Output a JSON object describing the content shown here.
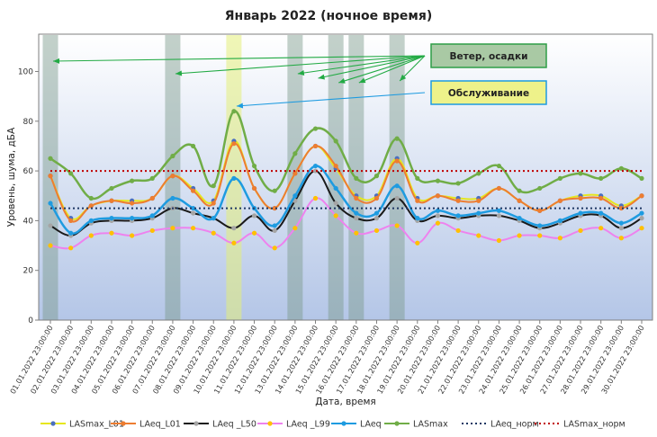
{
  "chart_data": {
    "type": "line",
    "title": "Январь 2022 (ночное время)",
    "xlabel": "Дата, время",
    "ylabel": "Уровень, шума, дБА",
    "ylim": [
      0,
      115
    ],
    "yticks": [
      0,
      20,
      40,
      60,
      80,
      100
    ],
    "grid": false,
    "legend_position": "bottom",
    "categories": [
      "01.01.2022 23:00:00",
      "02.01.2022 23:00:00",
      "03.01.2022 23:00:00",
      "04.01.2022 23:00:00",
      "05.01.2022 23:00:00",
      "06.01.2022 23:00:00",
      "07.01.2022 23:00:00",
      "08.01.2022 23:00:00",
      "09.01.2022 23:00:00",
      "10.01.2022 23:00:00",
      "11.01.2022 23:00:00",
      "12.01.2022 23:00:00",
      "13.01.2022 23:00:00",
      "14.01.2022 23:00:00",
      "15.01.2022 23:00:00",
      "16.01.2022 23:00:00",
      "17.01.2022 23:00:00",
      "18.01.2022 23:00:00",
      "19.01.2022 23:00:00",
      "20.01.2022 23:00:00",
      "21.01.2022 23:00:00",
      "22.01.2022 23:00:00",
      "23.01.2022 23:00:00",
      "24.01.2022 23:00:00",
      "25.01.2022 23:00:00",
      "26.01.2022 23:00:00",
      "27.01.2022 23:00:00",
      "28.01.2022 23:00:00",
      "29.01.2022 23:00:00",
      "30.01.2022 23:00:00"
    ],
    "series": [
      {
        "name": "LASmax_L01",
        "color": "#e6e61e",
        "marker": "#4a6fc0",
        "width": 2,
        "values": [
          58,
          41,
          46,
          48,
          48,
          49,
          58,
          53,
          48,
          72,
          53,
          45,
          59,
          70,
          61,
          50,
          50,
          65,
          49,
          50,
          49,
          49,
          53,
          48,
          44,
          48,
          50,
          50,
          46,
          50
        ]
      },
      {
        "name": "LAeq_L01",
        "color": "#ed7d31",
        "marker": "#ed7d31",
        "width": 2,
        "values": [
          58,
          40,
          46,
          48,
          47,
          49,
          58,
          52,
          47,
          71,
          53,
          45,
          59,
          70,
          62,
          49,
          49,
          64,
          48,
          50,
          48,
          48,
          53,
          48,
          44,
          48,
          49,
          49,
          45,
          50
        ]
      },
      {
        "name": "LAeq _L50",
        "color": "#1a1a1a",
        "marker": "#a5a5a5",
        "width": 2,
        "values": [
          38,
          34,
          39,
          40,
          40,
          41,
          45,
          43,
          41,
          37,
          42,
          36,
          48,
          60,
          47,
          41,
          41,
          49,
          40,
          42,
          41,
          42,
          42,
          40,
          37,
          39,
          42,
          42,
          37,
          41
        ]
      },
      {
        "name": "LAeq _L99",
        "color": "#ee82ee",
        "marker": "#ffc000",
        "width": 2,
        "values": [
          30,
          29,
          34,
          35,
          34,
          36,
          37,
          37,
          35,
          31,
          35,
          29,
          37,
          49,
          42,
          35,
          36,
          38,
          31,
          39,
          36,
          34,
          32,
          34,
          34,
          33,
          36,
          37,
          33,
          37
        ]
      },
      {
        "name": "LAeq",
        "color": "#1e9be0",
        "marker": "#1e9be0",
        "width": 2.5,
        "values": [
          47,
          35,
          40,
          41,
          41,
          42,
          49,
          45,
          41,
          57,
          45,
          38,
          50,
          62,
          53,
          43,
          43,
          54,
          41,
          44,
          42,
          43,
          44,
          41,
          38,
          40,
          43,
          43,
          39,
          43
        ]
      },
      {
        "name": "LASmax",
        "color": "#70ad47",
        "marker": "#70ad47",
        "width": 2.5,
        "values": [
          65,
          59,
          49,
          53,
          56,
          57,
          66,
          70,
          54,
          84,
          62,
          52,
          67,
          77,
          72,
          57,
          58,
          73,
          57,
          56,
          55,
          59,
          62,
          52,
          53,
          57,
          59,
          57,
          61,
          57
        ]
      },
      {
        "name": "LAeq_норм",
        "color": "#1f3864",
        "dash": "2,3",
        "width": 2,
        "values": [
          45,
          45,
          45,
          45,
          45,
          45,
          45,
          45,
          45,
          45,
          45,
          45,
          45,
          45,
          45,
          45,
          45,
          45,
          45,
          45,
          45,
          45,
          45,
          45,
          45,
          45,
          45,
          45,
          45,
          45
        ]
      },
      {
        "name": "LASmax_норм",
        "color": "#c00000",
        "dash": "2,3",
        "width": 2,
        "values": [
          60,
          60,
          60,
          60,
          60,
          60,
          60,
          60,
          60,
          60,
          60,
          60,
          60,
          60,
          60,
          60,
          60,
          60,
          60,
          60,
          60,
          60,
          60,
          60,
          60,
          60,
          60,
          60,
          60,
          60
        ]
      }
    ],
    "bands": [
      {
        "category_index": 0,
        "kind": "weather",
        "color": "#7a9a8a"
      },
      {
        "category_index": 6,
        "kind": "weather",
        "color": "#7a9a8a"
      },
      {
        "category_index": 9,
        "kind": "maintenance",
        "color": "#e4ee7a"
      },
      {
        "category_index": 12,
        "kind": "weather",
        "color": "#7a9a8a"
      },
      {
        "category_index": 14,
        "kind": "weather",
        "color": "#7a9a8a"
      },
      {
        "category_index": 15,
        "kind": "weather",
        "color": "#7a9a8a"
      },
      {
        "category_index": 17,
        "kind": "weather",
        "color": "#7a9a8a"
      }
    ],
    "annotations": [
      {
        "text": "Ветер, осадки",
        "kind": "weather",
        "arrow_color": "#22aa44",
        "border_color": "#2e9e46",
        "fill_color": "#a9c9a4",
        "targets": [
          0,
          6,
          12,
          13,
          14,
          15,
          17
        ]
      },
      {
        "text": "Обслуживание",
        "kind": "maintenance",
        "arrow_color": "#1e9be0",
        "border_color": "#1e9be0",
        "fill_color": "#eef28a",
        "targets": [
          9
        ]
      }
    ]
  }
}
